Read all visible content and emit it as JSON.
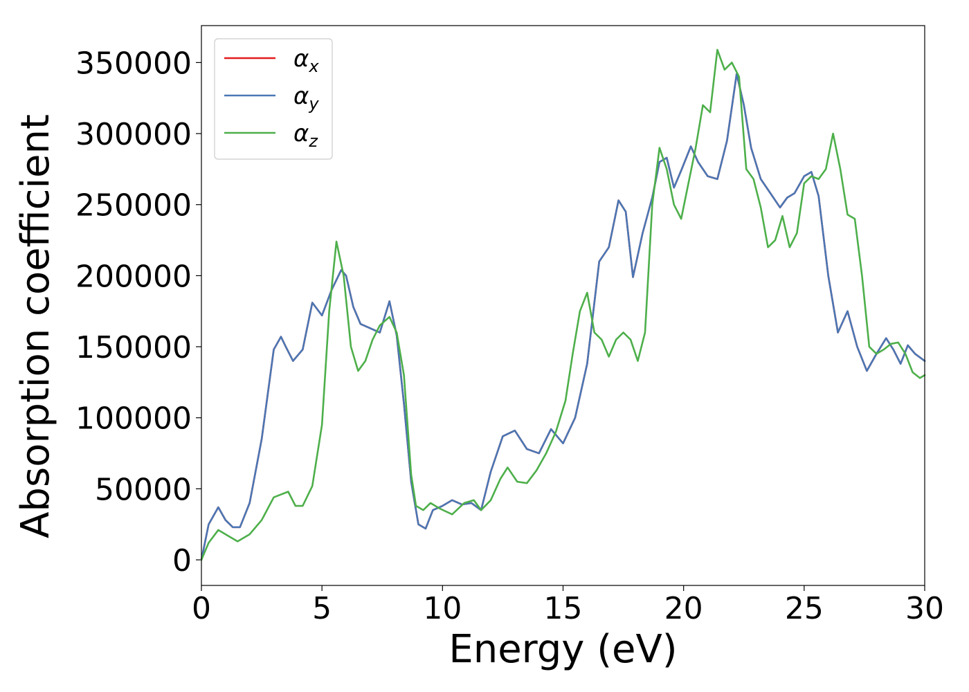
{
  "chart_data": {
    "type": "line",
    "xlabel": "Energy (eV)",
    "ylabel": "Absorption coefficient",
    "xlim": [
      0,
      30
    ],
    "ylim": [
      -18000,
      376000
    ],
    "xticks": [
      0,
      5,
      10,
      15,
      20,
      25,
      30
    ],
    "yticks": [
      0,
      50000,
      100000,
      150000,
      200000,
      250000,
      300000,
      350000
    ],
    "grid": false,
    "legend_position": "top-left",
    "series": [
      {
        "name": "αx",
        "legend_base": "α",
        "legend_sub": "x",
        "color": "#e41a1c",
        "x": [
          0,
          0.3,
          0.7,
          1.0,
          1.3,
          1.6,
          2.0,
          2.5,
          3.0,
          3.3,
          3.5,
          3.8,
          4.2,
          4.6,
          5.0,
          5.4,
          5.8,
          6.0,
          6.3,
          6.6,
          7.0,
          7.4,
          7.8,
          8.1,
          8.4,
          8.7,
          9.0,
          9.3,
          9.6,
          10.0,
          10.4,
          10.8,
          11.2,
          11.6,
          12.0,
          12.5,
          13.0,
          13.5,
          14.0,
          14.5,
          15.0,
          15.5,
          16.0,
          16.5,
          16.9,
          17.3,
          17.6,
          17.9,
          18.3,
          18.7,
          19.0,
          19.3,
          19.6,
          19.9,
          20.3,
          20.6,
          21.0,
          21.4,
          21.8,
          22.2,
          22.5,
          22.8,
          23.2,
          23.6,
          24.0,
          24.3,
          24.6,
          25.0,
          25.3,
          25.6,
          26.0,
          26.4,
          26.8,
          27.2,
          27.6,
          28.0,
          28.4,
          28.7,
          29.0,
          29.3,
          29.6,
          30.0
        ],
        "values": [
          0,
          25000,
          37000,
          28000,
          23000,
          23000,
          40000,
          85000,
          148000,
          157000,
          150000,
          140000,
          148000,
          181000,
          172000,
          190000,
          204000,
          200000,
          178000,
          166000,
          163000,
          160000,
          182000,
          158000,
          110000,
          55000,
          25000,
          22000,
          35000,
          38000,
          42000,
          39000,
          40000,
          35000,
          62000,
          87000,
          91000,
          78000,
          75000,
          92000,
          82000,
          100000,
          138000,
          210000,
          220000,
          253000,
          245000,
          199000,
          230000,
          255000,
          280000,
          283000,
          262000,
          274000,
          291000,
          280000,
          270000,
          268000,
          295000,
          342000,
          320000,
          290000,
          268000,
          258000,
          248000,
          255000,
          258000,
          270000,
          273000,
          256000,
          200000,
          160000,
          175000,
          150000,
          133000,
          145000,
          156000,
          148000,
          138000,
          151000,
          145000,
          140000
        ]
      },
      {
        "name": "αy",
        "legend_base": "α",
        "legend_sub": "y",
        "color": "#4a77b4",
        "x": [
          0,
          0.3,
          0.7,
          1.0,
          1.3,
          1.6,
          2.0,
          2.5,
          3.0,
          3.3,
          3.5,
          3.8,
          4.2,
          4.6,
          5.0,
          5.4,
          5.8,
          6.0,
          6.3,
          6.6,
          7.0,
          7.4,
          7.8,
          8.1,
          8.4,
          8.7,
          9.0,
          9.3,
          9.6,
          10.0,
          10.4,
          10.8,
          11.2,
          11.6,
          12.0,
          12.5,
          13.0,
          13.5,
          14.0,
          14.5,
          15.0,
          15.5,
          16.0,
          16.5,
          16.9,
          17.3,
          17.6,
          17.9,
          18.3,
          18.7,
          19.0,
          19.3,
          19.6,
          19.9,
          20.3,
          20.6,
          21.0,
          21.4,
          21.8,
          22.2,
          22.5,
          22.8,
          23.2,
          23.6,
          24.0,
          24.3,
          24.6,
          25.0,
          25.3,
          25.6,
          26.0,
          26.4,
          26.8,
          27.2,
          27.6,
          28.0,
          28.4,
          28.7,
          29.0,
          29.3,
          29.6,
          30.0
        ],
        "values": [
          0,
          25000,
          37000,
          28000,
          23000,
          23000,
          40000,
          85000,
          148000,
          157000,
          150000,
          140000,
          148000,
          181000,
          172000,
          190000,
          204000,
          200000,
          178000,
          166000,
          163000,
          160000,
          182000,
          158000,
          110000,
          55000,
          25000,
          22000,
          35000,
          38000,
          42000,
          39000,
          40000,
          35000,
          62000,
          87000,
          91000,
          78000,
          75000,
          92000,
          82000,
          100000,
          138000,
          210000,
          220000,
          253000,
          245000,
          199000,
          230000,
          255000,
          280000,
          283000,
          262000,
          274000,
          291000,
          280000,
          270000,
          268000,
          295000,
          342000,
          320000,
          290000,
          268000,
          258000,
          248000,
          255000,
          258000,
          270000,
          273000,
          256000,
          200000,
          160000,
          175000,
          150000,
          133000,
          145000,
          156000,
          148000,
          138000,
          151000,
          145000,
          140000
        ]
      },
      {
        "name": "αz",
        "legend_base": "α",
        "legend_sub": "z",
        "color": "#4daf4a",
        "x": [
          0,
          0.3,
          0.7,
          1.0,
          1.5,
          2.0,
          2.5,
          3.0,
          3.3,
          3.6,
          3.9,
          4.2,
          4.6,
          5.0,
          5.3,
          5.6,
          5.9,
          6.2,
          6.5,
          6.8,
          7.1,
          7.4,
          7.8,
          8.1,
          8.4,
          8.7,
          8.9,
          9.2,
          9.5,
          9.9,
          10.4,
          10.9,
          11.3,
          11.6,
          12.0,
          12.4,
          12.7,
          13.1,
          13.5,
          13.9,
          14.3,
          14.7,
          15.1,
          15.4,
          15.7,
          16.0,
          16.3,
          16.6,
          16.9,
          17.2,
          17.5,
          17.8,
          18.1,
          18.4,
          18.7,
          19.0,
          19.3,
          19.6,
          19.9,
          20.2,
          20.5,
          20.8,
          21.1,
          21.4,
          21.7,
          22.0,
          22.3,
          22.6,
          22.9,
          23.2,
          23.5,
          23.8,
          24.1,
          24.4,
          24.7,
          25.0,
          25.3,
          25.6,
          25.9,
          26.2,
          26.5,
          26.8,
          27.1,
          27.4,
          27.7,
          28.0,
          28.3,
          28.6,
          28.9,
          29.2,
          29.5,
          29.8,
          30.0
        ],
        "values": [
          0,
          12000,
          21000,
          18000,
          13000,
          18000,
          28000,
          44000,
          46000,
          48000,
          38000,
          38000,
          52000,
          95000,
          175000,
          224000,
          200000,
          150000,
          133000,
          140000,
          155000,
          165000,
          171000,
          160000,
          130000,
          60000,
          38000,
          35000,
          40000,
          36000,
          32000,
          40000,
          42000,
          35000,
          42000,
          57000,
          65000,
          55000,
          54000,
          63000,
          75000,
          90000,
          112000,
          145000,
          175000,
          188000,
          160000,
          155000,
          143000,
          155000,
          160000,
          155000,
          140000,
          160000,
          250000,
          290000,
          275000,
          250000,
          240000,
          265000,
          290000,
          320000,
          315000,
          359000,
          345000,
          350000,
          340000,
          275000,
          268000,
          248000,
          220000,
          225000,
          242000,
          220000,
          230000,
          265000,
          270000,
          268000,
          275000,
          300000,
          275000,
          243000,
          240000,
          200000,
          150000,
          145000,
          148000,
          152000,
          153000,
          145000,
          132000,
          128000,
          130000
        ]
      }
    ]
  }
}
